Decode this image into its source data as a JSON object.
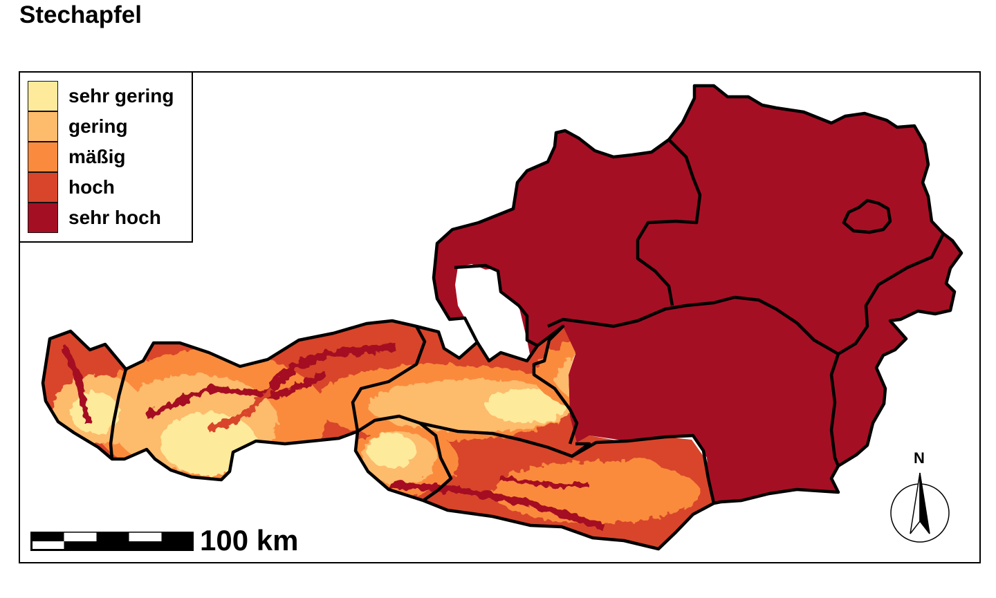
{
  "title": "Stechapfel",
  "legend": {
    "items": [
      {
        "label": "sehr gering",
        "color": "#fdea9b"
      },
      {
        "label": "gering",
        "color": "#fdbb6c"
      },
      {
        "label": "mäßig",
        "color": "#fa8b3e"
      },
      {
        "label": "hoch",
        "color": "#d8452a"
      },
      {
        "label": "sehr hoch",
        "color": "#a50f24"
      }
    ]
  },
  "scale_bar": {
    "label": "100 km"
  },
  "north_arrow": {
    "label": "N"
  }
}
